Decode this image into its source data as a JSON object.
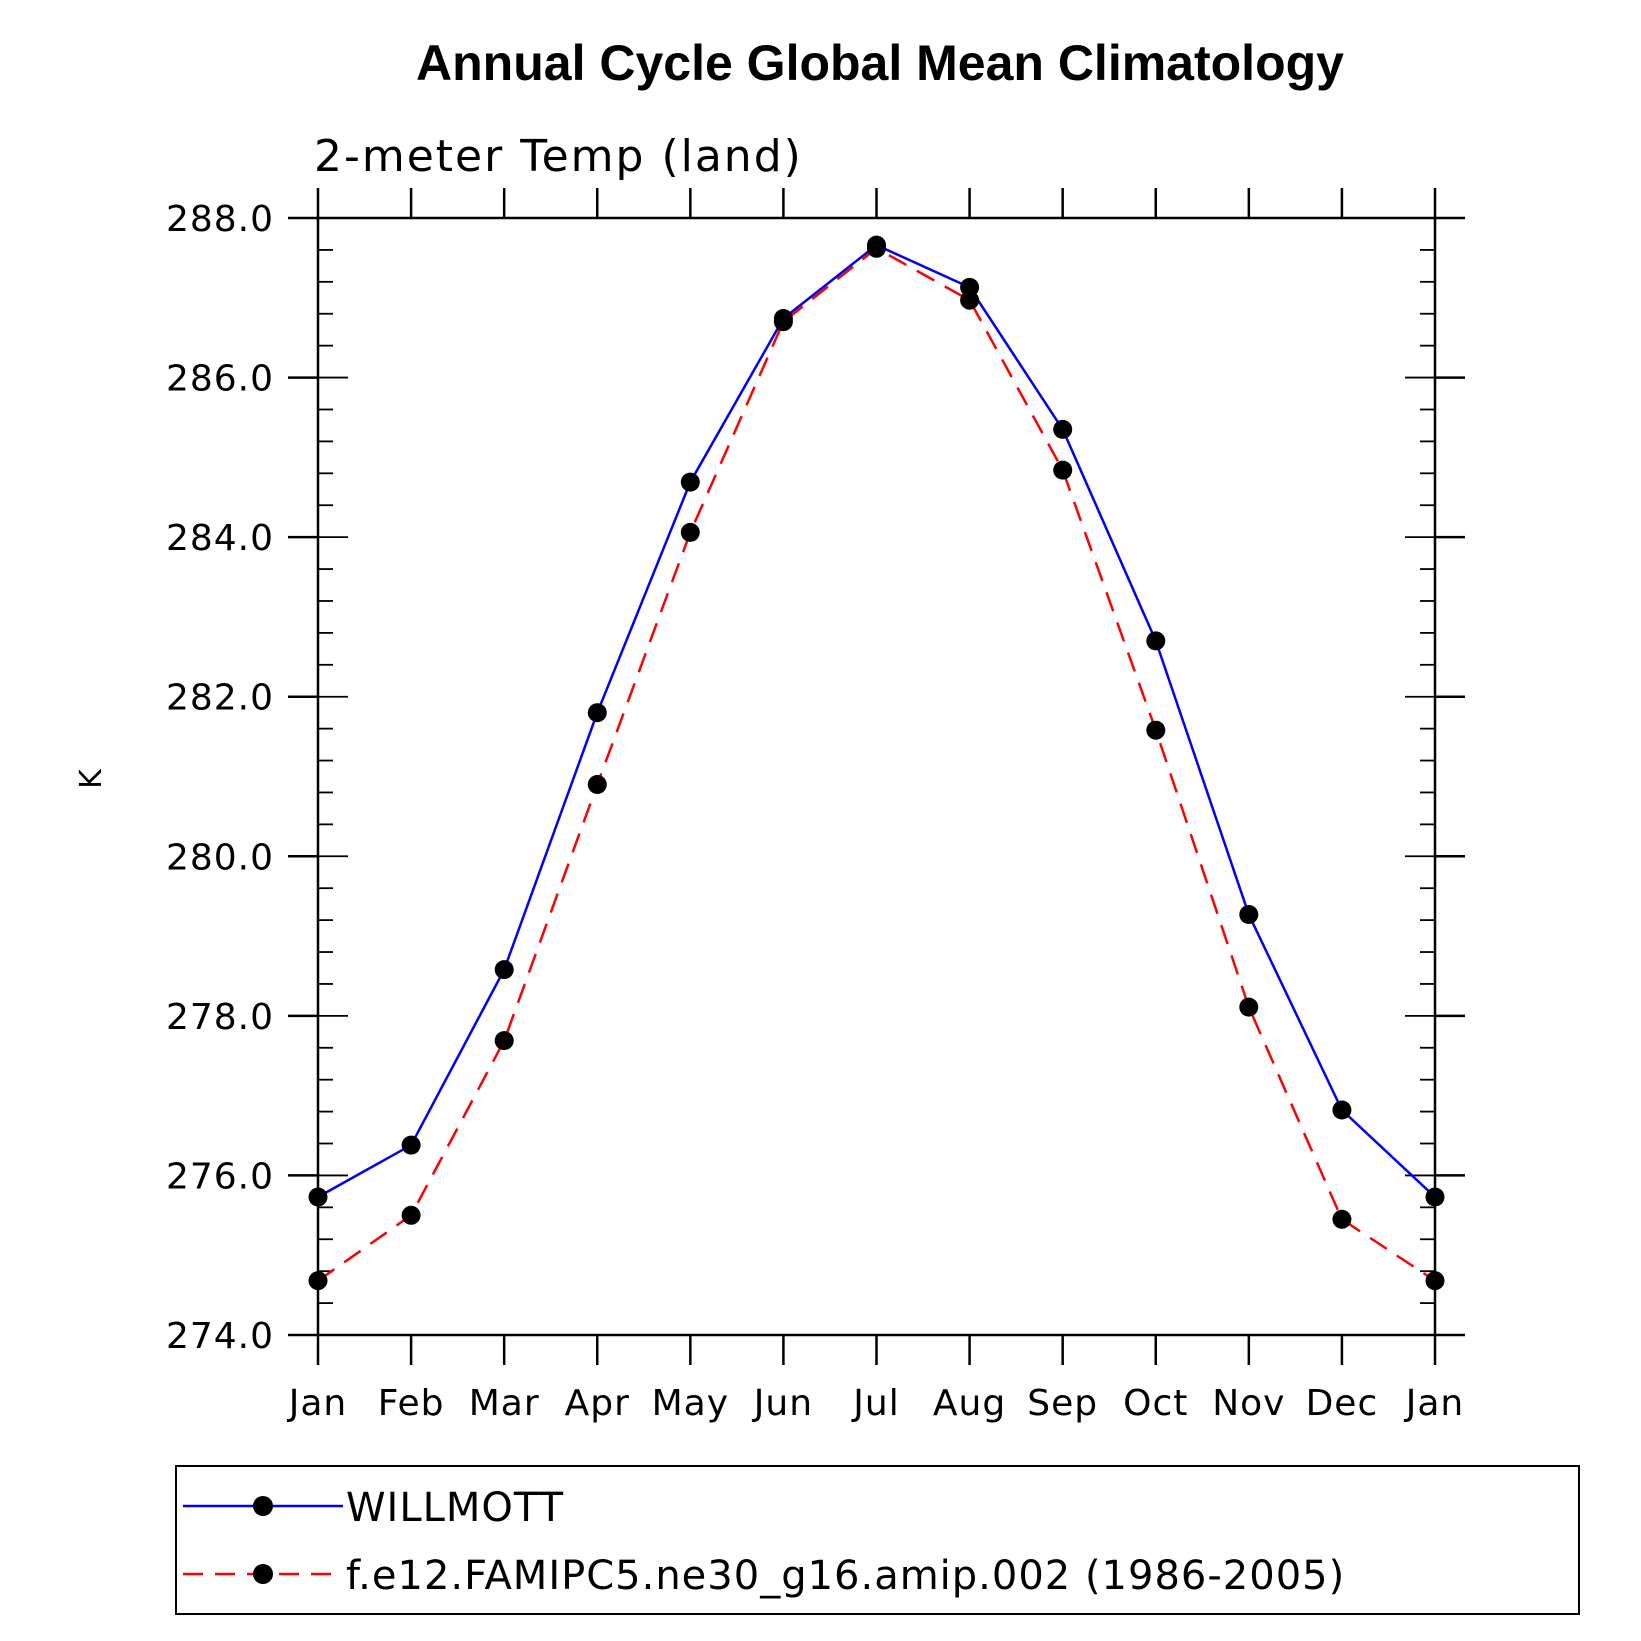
{
  "chart_data": {
    "type": "line",
    "title": "Annual Cycle Global Mean Climatology",
    "subtitle": "2-meter Temp (land)",
    "xlabel": "",
    "ylabel": "K",
    "categories": [
      "Jan",
      "Feb",
      "Mar",
      "Apr",
      "May",
      "Jun",
      "Jul",
      "Aug",
      "Sep",
      "Oct",
      "Nov",
      "Dec",
      "Jan"
    ],
    "ylim": [
      274.0,
      288.0
    ],
    "yticks": [
      "274.0",
      "276.0",
      "278.0",
      "280.0",
      "282.0",
      "284.0",
      "286.0",
      "288.0"
    ],
    "grid": false,
    "legend_position": "bottom",
    "series": [
      {
        "name": "WILLMOTT",
        "color": "#0000ff",
        "line_style": "solid",
        "marker": "filled-circle",
        "values": [
          275.73,
          276.38,
          278.58,
          281.8,
          284.69,
          286.74,
          287.66,
          287.13,
          285.35,
          282.7,
          279.27,
          276.82,
          275.73
        ]
      },
      {
        "name": "f.e12.FAMIPC5.ne30_g16.amip.002 (1986-2005)",
        "color": "#ff0000",
        "line_style": "dashed",
        "marker": "filled-circle",
        "values": [
          274.68,
          275.5,
          277.69,
          280.9,
          284.06,
          286.7,
          287.62,
          286.97,
          284.84,
          281.58,
          278.11,
          275.45,
          274.68
        ]
      }
    ]
  }
}
